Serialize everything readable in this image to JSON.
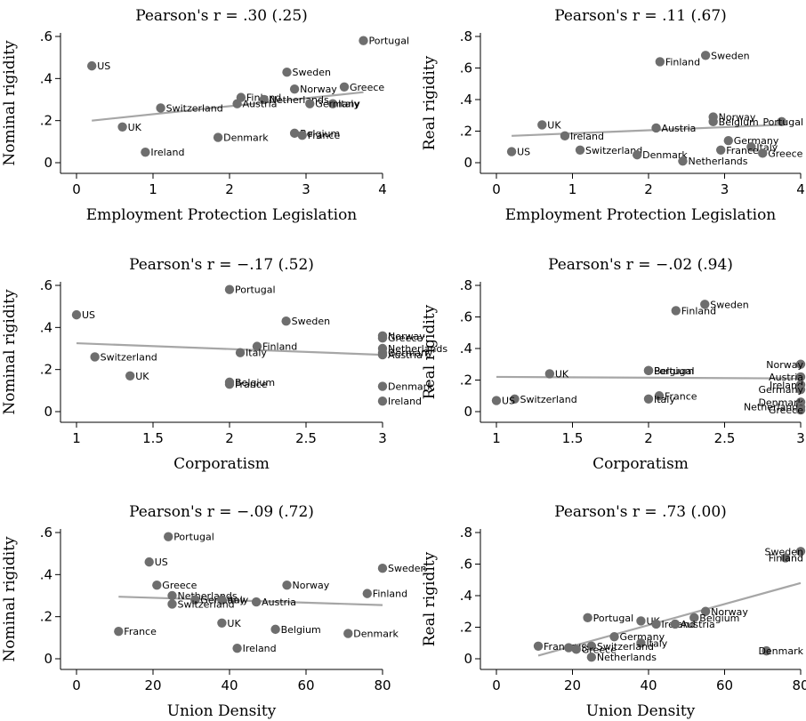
{
  "chart_data": [
    {
      "type": "scatter",
      "title": "Pearson's r = .30 (.25)",
      "xlabel": "Employment Protection Legislation",
      "ylabel": "Nominal rigidity",
      "xlim": [
        0,
        4
      ],
      "ylim": [
        0,
        0.6
      ],
      "xticks": [
        0,
        1,
        2,
        3,
        4
      ],
      "yticks": [
        0,
        0.2,
        0.4,
        0.6
      ],
      "xticklabels": [
        "0",
        "1",
        "2",
        "3",
        "4"
      ],
      "yticklabels": [
        "0",
        ".2",
        ".4",
        ".6"
      ],
      "points": [
        {
          "label": "Portugal",
          "x": 3.75,
          "y": 0.58
        },
        {
          "label": "US",
          "x": 0.2,
          "y": 0.46
        },
        {
          "label": "Sweden",
          "x": 2.75,
          "y": 0.43
        },
        {
          "label": "Greece",
          "x": 3.5,
          "y": 0.36
        },
        {
          "label": "Norway",
          "x": 2.85,
          "y": 0.35
        },
        {
          "label": "Finland",
          "x": 2.15,
          "y": 0.31
        },
        {
          "label": "Netherlands",
          "x": 2.45,
          "y": 0.3
        },
        {
          "label": "Italy",
          "x": 3.35,
          "y": 0.28
        },
        {
          "label": "Austria",
          "x": 2.1,
          "y": 0.28
        },
        {
          "label": "Germany",
          "x": 3.05,
          "y": 0.28
        },
        {
          "label": "Switzerland",
          "x": 1.1,
          "y": 0.26
        },
        {
          "label": "UK",
          "x": 0.6,
          "y": 0.17
        },
        {
          "label": "Belgium",
          "x": 2.85,
          "y": 0.14
        },
        {
          "label": "France",
          "x": 2.95,
          "y": 0.13
        },
        {
          "label": "Denmark",
          "x": 1.85,
          "y": 0.12
        },
        {
          "label": "Ireland",
          "x": 0.9,
          "y": 0.05
        }
      ],
      "fit_line": [
        [
          0.2,
          0.2
        ],
        [
          3.75,
          0.335
        ]
      ]
    },
    {
      "type": "scatter",
      "title": "Pearson's r = .11 (.67)",
      "xlabel": "Employment Protection Legislation",
      "ylabel": "Real rigidity",
      "xlim": [
        0,
        4
      ],
      "ylim": [
        0,
        0.8
      ],
      "xticks": [
        0,
        1,
        2,
        3,
        4
      ],
      "yticks": [
        0,
        0.2,
        0.4,
        0.6,
        0.8
      ],
      "xticklabels": [
        "0",
        "1",
        "2",
        "3",
        "4"
      ],
      "yticklabels": [
        "0",
        ".2",
        ".4",
        ".6",
        ".8"
      ],
      "points": [
        {
          "label": "Sweden",
          "x": 2.75,
          "y": 0.68
        },
        {
          "label": "Finland",
          "x": 2.15,
          "y": 0.64
        },
        {
          "label": "Norway",
          "x": 2.85,
          "y": 0.29
        },
        {
          "label": "Belgium",
          "x": 2.85,
          "y": 0.26
        },
        {
          "label": "Portugal",
          "x": 3.75,
          "y": 0.26
        },
        {
          "label": "UK",
          "x": 0.6,
          "y": 0.24
        },
        {
          "label": "Austria",
          "x": 2.1,
          "y": 0.22
        },
        {
          "label": "Ireland",
          "x": 0.9,
          "y": 0.17
        },
        {
          "label": "Germany",
          "x": 3.05,
          "y": 0.14
        },
        {
          "label": "Italy",
          "x": 3.35,
          "y": 0.1
        },
        {
          "label": "Switzerland",
          "x": 1.1,
          "y": 0.08
        },
        {
          "label": "France",
          "x": 2.95,
          "y": 0.08
        },
        {
          "label": "US",
          "x": 0.2,
          "y": 0.07
        },
        {
          "label": "Greece",
          "x": 3.5,
          "y": 0.06
        },
        {
          "label": "Denmark",
          "x": 1.85,
          "y": 0.05
        },
        {
          "label": "Netherlands",
          "x": 2.45,
          "y": 0.01
        }
      ],
      "fit_line": [
        [
          0.2,
          0.17
        ],
        [
          3.75,
          0.24
        ]
      ]
    },
    {
      "type": "scatter",
      "title": "Pearson's r = −.17 (.52)",
      "xlabel": "Corporatism",
      "ylabel": "Nominal rigidity",
      "xlim": [
        1,
        3
      ],
      "ylim": [
        0,
        0.6
      ],
      "xticks": [
        1,
        1.5,
        2,
        2.5,
        3
      ],
      "yticks": [
        0,
        0.2,
        0.4,
        0.6
      ],
      "xticklabels": [
        "1",
        "1.5",
        "2",
        "2.5",
        "3"
      ],
      "yticklabels": [
        "0",
        ".2",
        ".4",
        ".6"
      ],
      "points": [
        {
          "label": "Portugal",
          "x": 2.0,
          "y": 0.58
        },
        {
          "label": "US",
          "x": 1.0,
          "y": 0.46
        },
        {
          "label": "Sweden",
          "x": 2.37,
          "y": 0.43
        },
        {
          "label": "Norway",
          "x": 3.0,
          "y": 0.36
        },
        {
          "label": "Greece",
          "x": 3.0,
          "y": 0.35
        },
        {
          "label": "Finland",
          "x": 2.18,
          "y": 0.31
        },
        {
          "label": "Netherlands",
          "x": 3.0,
          "y": 0.3
        },
        {
          "label": "Italy",
          "x": 2.07,
          "y": 0.28
        },
        {
          "label": "Germany",
          "x": 3.0,
          "y": 0.28
        },
        {
          "label": "Austria",
          "x": 3.0,
          "y": 0.27
        },
        {
          "label": "Switzerland",
          "x": 1.12,
          "y": 0.26
        },
        {
          "label": "UK",
          "x": 1.35,
          "y": 0.17
        },
        {
          "label": "Belgium",
          "x": 2.0,
          "y": 0.14
        },
        {
          "label": "France",
          "x": 2.0,
          "y": 0.13
        },
        {
          "label": "Denmark",
          "x": 3.0,
          "y": 0.12
        },
        {
          "label": "Ireland",
          "x": 3.0,
          "y": 0.05
        }
      ],
      "fit_line": [
        [
          1.0,
          0.325
        ],
        [
          3.0,
          0.27
        ]
      ]
    },
    {
      "type": "scatter",
      "title": "Pearson's r = −.02 (.94)",
      "xlabel": "Corporatism",
      "ylabel": "Real rigidity",
      "xlim": [
        1,
        3
      ],
      "ylim": [
        0,
        0.8
      ],
      "xticks": [
        1,
        1.5,
        2,
        2.5,
        3
      ],
      "yticks": [
        0,
        0.2,
        0.4,
        0.6,
        0.8
      ],
      "xticklabels": [
        "1",
        "1.5",
        "2",
        "2.5",
        "3"
      ],
      "yticklabels": [
        "0",
        ".2",
        ".4",
        ".6",
        ".8"
      ],
      "points": [
        {
          "label": "Sweden",
          "x": 2.37,
          "y": 0.68
        },
        {
          "label": "Finland",
          "x": 2.18,
          "y": 0.64
        },
        {
          "label": "Norway",
          "x": 3.0,
          "y": 0.3
        },
        {
          "label": "Belgium",
          "x": 2.0,
          "y": 0.26
        },
        {
          "label": "Portugal",
          "x": 2.0,
          "y": 0.26
        },
        {
          "label": "UK",
          "x": 1.35,
          "y": 0.24
        },
        {
          "label": "Austria",
          "x": 3.0,
          "y": 0.22
        },
        {
          "label": "Ireland",
          "x": 3.0,
          "y": 0.17
        },
        {
          "label": "Germany",
          "x": 3.0,
          "y": 0.14
        },
        {
          "label": "France",
          "x": 2.07,
          "y": 0.1
        },
        {
          "label": "Denmark",
          "x": 3.0,
          "y": 0.06
        },
        {
          "label": "Switzerland",
          "x": 1.12,
          "y": 0.08
        },
        {
          "label": "Italy",
          "x": 2.0,
          "y": 0.08
        },
        {
          "label": "US",
          "x": 1.0,
          "y": 0.07
        },
        {
          "label": "Netherlands",
          "x": 3.0,
          "y": 0.03
        },
        {
          "label": "Greece",
          "x": 3.0,
          "y": 0.01
        }
      ],
      "fit_line": [
        [
          1.0,
          0.22
        ],
        [
          3.0,
          0.21
        ]
      ]
    },
    {
      "type": "scatter",
      "title": "Pearson's r = −.09 (.72)",
      "xlabel": "Union Density",
      "ylabel": "Nominal rigidity",
      "xlim": [
        0,
        80
      ],
      "ylim": [
        0,
        0.6
      ],
      "xticks": [
        0,
        20,
        40,
        60,
        80
      ],
      "yticks": [
        0,
        0.2,
        0.4,
        0.6
      ],
      "xticklabels": [
        "0",
        "20",
        "40",
        "60",
        "80"
      ],
      "yticklabels": [
        "0",
        ".2",
        ".4",
        ".6"
      ],
      "points": [
        {
          "label": "Portugal",
          "x": 24,
          "y": 0.58
        },
        {
          "label": "US",
          "x": 19,
          "y": 0.46
        },
        {
          "label": "Sweden",
          "x": 80,
          "y": 0.43
        },
        {
          "label": "Greece",
          "x": 21,
          "y": 0.35
        },
        {
          "label": "Norway",
          "x": 55,
          "y": 0.35
        },
        {
          "label": "Finland",
          "x": 76,
          "y": 0.31
        },
        {
          "label": "Netherlands",
          "x": 25,
          "y": 0.3
        },
        {
          "label": "Germany",
          "x": 31,
          "y": 0.28
        },
        {
          "label": "Italy",
          "x": 38,
          "y": 0.28
        },
        {
          "label": "Austria",
          "x": 47,
          "y": 0.27
        },
        {
          "label": "Switzerland",
          "x": 25,
          "y": 0.26
        },
        {
          "label": "UK",
          "x": 38,
          "y": 0.17
        },
        {
          "label": "Belgium",
          "x": 52,
          "y": 0.14
        },
        {
          "label": "France",
          "x": 11,
          "y": 0.13
        },
        {
          "label": "Denmark",
          "x": 71,
          "y": 0.12
        },
        {
          "label": "Ireland",
          "x": 42,
          "y": 0.05
        }
      ],
      "fit_line": [
        [
          11,
          0.295
        ],
        [
          80,
          0.255
        ]
      ]
    },
    {
      "type": "scatter",
      "title": "Pearson's r = .73 (.00)",
      "xlabel": "Union Density",
      "ylabel": "Real rigidity",
      "xlim": [
        0,
        80
      ],
      "ylim": [
        0,
        0.8
      ],
      "xticks": [
        0,
        20,
        40,
        60,
        80
      ],
      "yticks": [
        0,
        0.2,
        0.4,
        0.6,
        0.8
      ],
      "xticklabels": [
        "0",
        "20",
        "40",
        "60",
        "80"
      ],
      "yticklabels": [
        "0",
        ".2",
        ".4",
        ".6",
        ".8"
      ],
      "points": [
        {
          "label": "Sweden",
          "x": 80,
          "y": 0.68
        },
        {
          "label": "Finland",
          "x": 76,
          "y": 0.64
        },
        {
          "label": "Norway",
          "x": 55,
          "y": 0.3
        },
        {
          "label": "UK",
          "x": 38,
          "y": 0.24
        },
        {
          "label": "Belgium",
          "x": 52,
          "y": 0.26
        },
        {
          "label": "Portugal",
          "x": 24,
          "y": 0.26
        },
        {
          "label": "Ireland",
          "x": 42,
          "y": 0.22
        },
        {
          "label": "Austria",
          "x": 47,
          "y": 0.22
        },
        {
          "label": "Germany",
          "x": 31,
          "y": 0.14
        },
        {
          "label": "Italy",
          "x": 38,
          "y": 0.1
        },
        {
          "label": "France",
          "x": 11,
          "y": 0.08
        },
        {
          "label": "US",
          "x": 19,
          "y": 0.07
        },
        {
          "label": "Switzerland",
          "x": 25,
          "y": 0.08
        },
        {
          "label": "Greece",
          "x": 21,
          "y": 0.06
        },
        {
          "label": "Denmark",
          "x": 71,
          "y": 0.05
        },
        {
          "label": "Netherlands",
          "x": 25,
          "y": 0.01
        }
      ],
      "fit_line": [
        [
          11,
          0.02
        ],
        [
          80,
          0.48
        ]
      ]
    }
  ],
  "colors": {
    "marker": "#6e6e6e",
    "fit_line": "#a6a6a6",
    "axis": "#000000"
  }
}
